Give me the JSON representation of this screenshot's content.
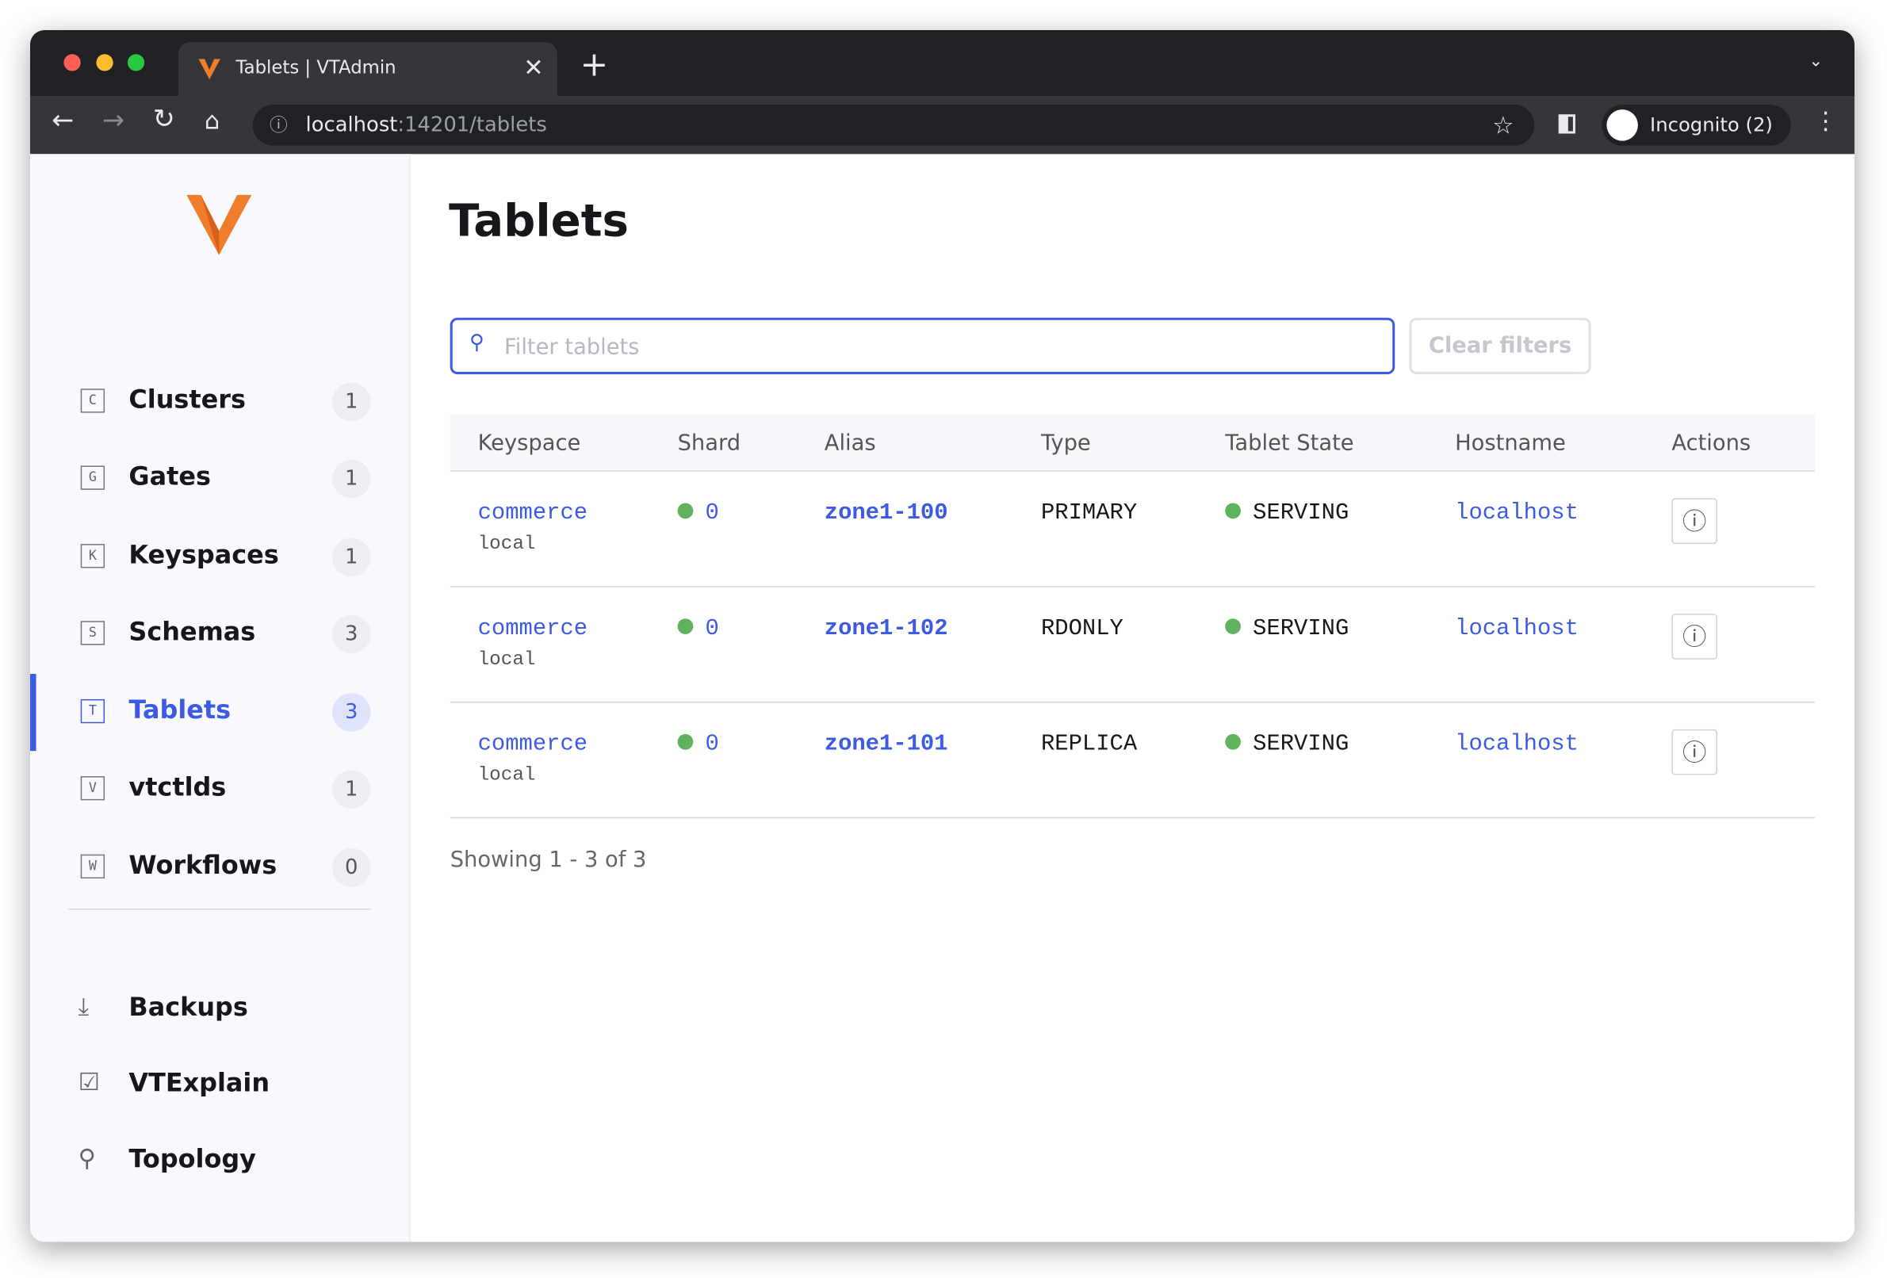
{
  "browser": {
    "tab_title": "Tablets | VTAdmin",
    "url_host": "localhost",
    "url_path": ":14201/tablets",
    "profile": "Incognito (2)"
  },
  "sidebar": {
    "nav": [
      {
        "icon": "C",
        "label": "Clusters",
        "count": 1
      },
      {
        "icon": "G",
        "label": "Gates",
        "count": 1
      },
      {
        "icon": "K",
        "label": "Keyspaces",
        "count": 1
      },
      {
        "icon": "S",
        "label": "Schemas",
        "count": 3
      },
      {
        "icon": "T",
        "label": "Tablets",
        "count": 3,
        "active": true
      },
      {
        "icon": "V",
        "label": "vtctlds",
        "count": 1
      },
      {
        "icon": "W",
        "label": "Workflows",
        "count": 0
      }
    ],
    "links": [
      "Backups",
      "VTExplain",
      "Topology"
    ]
  },
  "page": {
    "title": "Tablets",
    "filter_placeholder": "Filter tablets",
    "clear_button": "Clear filters",
    "table": {
      "headers": [
        "Keyspace",
        "Shard",
        "Alias",
        "Type",
        "Tablet State",
        "Hostname",
        "Actions"
      ],
      "rows": [
        {
          "keyspace": "commerce",
          "cluster": "local",
          "shard": "0",
          "alias": "zone1-100",
          "type": "PRIMARY",
          "state": "SERVING",
          "hostname": "localhost"
        },
        {
          "keyspace": "commerce",
          "cluster": "local",
          "shard": "0",
          "alias": "zone1-102",
          "type": "RDONLY",
          "state": "SERVING",
          "hostname": "localhost"
        },
        {
          "keyspace": "commerce",
          "cluster": "local",
          "shard": "0",
          "alias": "zone1-101",
          "type": "REPLICA",
          "state": "SERVING",
          "hostname": "localhost"
        }
      ]
    },
    "footer": "Showing 1 - 3 of 3"
  }
}
